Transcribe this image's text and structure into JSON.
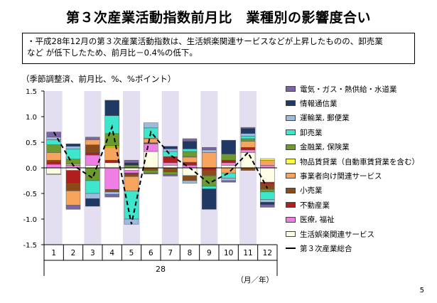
{
  "title": "第３次産業活動指数前月比　業種別の影響度合い",
  "note": {
    "line1": "・平成28年12月の第３次産業活動指数は、生活娯楽関連サービスなどが上昇したものの、卸売業",
    "line2": "など が低下したため、前月比－0.4%の低下。"
  },
  "page_number": "5",
  "chart_data": {
    "type": "bar",
    "stacked": true,
    "subtitle": "（季節調整済、前月比、%、%ポイント）",
    "categories": [
      "1",
      "2",
      "3",
      "4",
      "5",
      "6",
      "7",
      "8",
      "9",
      "10",
      "11",
      "12"
    ],
    "year_label": "28",
    "x_unit_label": "（月／年）",
    "ylim": [
      -1.5,
      1.5
    ],
    "yticks": [
      "1.5",
      "1.0",
      "0.5",
      "0.0",
      "-0.5",
      "-1.0",
      "-1.5"
    ],
    "shaded_months": [
      "1",
      "3",
      "5",
      "7",
      "9",
      "11"
    ],
    "series": [
      {
        "name": "生活娯楽関連サービス",
        "color": "#fdfde4",
        "values": [
          -0.12,
          -0.05,
          0.05,
          0.1,
          -0.05,
          0.32,
          0.05,
          -0.15,
          0.0,
          0.05,
          0.3,
          -0.28
        ]
      },
      {
        "name": "医療, 福祉",
        "color": "#f07ee4",
        "values": [
          0.07,
          0.05,
          0.2,
          -0.42,
          -0.05,
          0.15,
          0.05,
          0.05,
          0.0,
          0.05,
          0.05,
          0.05
        ]
      },
      {
        "name": "不動産業",
        "color": "#b11e1e",
        "values": [
          0.05,
          -0.25,
          0.05,
          0.05,
          -0.02,
          0.02,
          0.12,
          0.06,
          -0.05,
          0.05,
          0.05,
          -0.04
        ]
      },
      {
        "name": "小売業",
        "color": "#8a4b18",
        "values": [
          0.03,
          -0.15,
          0.15,
          -0.05,
          -0.05,
          -0.05,
          -0.08,
          -0.1,
          -0.1,
          0.0,
          -0.05,
          -0.1
        ]
      },
      {
        "name": "事業者向け関連サービス",
        "color": "#f7a45d",
        "values": [
          0.15,
          -0.28,
          0.1,
          0.25,
          -0.28,
          0.08,
          0.0,
          0.1,
          0.3,
          -0.1,
          0.12,
          0.1
        ]
      },
      {
        "name": "物品賃貸業（自動車賃貸業を含む）",
        "color": "#ffff33",
        "values": [
          -0.01,
          0.02,
          0.0,
          0.02,
          0.0,
          0.01,
          0.0,
          0.01,
          -0.01,
          0.0,
          0.0,
          0.03
        ]
      },
      {
        "name": "金融業, 保険業",
        "color": "#6c9a2e",
        "values": [
          0.15,
          0.1,
          -0.25,
          0.25,
          0.05,
          -0.05,
          -0.05,
          0.1,
          -0.2,
          0.12,
          0.05,
          -0.05
        ]
      },
      {
        "name": "卸売業",
        "color": "#3ee6cc",
        "values": [
          0.1,
          0.2,
          -0.25,
          0.35,
          -0.55,
          0.2,
          0.1,
          0.05,
          -0.05,
          -0.1,
          0.05,
          -0.15
        ]
      },
      {
        "name": "運輸業, 郵便業",
        "color": "#9bbbdf",
        "values": [
          0.05,
          0.05,
          -0.1,
          -0.05,
          -0.1,
          0.1,
          0.05,
          -0.05,
          0.05,
          -0.05,
          0.05,
          -0.05
        ]
      },
      {
        "name": "情報通信業",
        "color": "#203864",
        "values": [
          0.0,
          0.05,
          -0.15,
          0.3,
          0.05,
          0.0,
          0.05,
          0.15,
          -0.4,
          0.27,
          0.1,
          -0.05
        ]
      },
      {
        "name": "電気・ガス・熱供給・水道業",
        "color": "#7b65a6",
        "values": [
          0.1,
          -0.08,
          0.05,
          -0.05,
          0.05,
          -0.02,
          -0.03,
          0.05,
          0.05,
          -0.03,
          0.02,
          -0.05
        ]
      }
    ],
    "line": {
      "name": "第３次産業総合",
      "values": [
        0.7,
        0.05,
        -0.2,
        0.8,
        -1.1,
        0.7,
        0.25,
        0.0,
        -0.3,
        -0.1,
        0.3,
        -0.4
      ]
    }
  }
}
